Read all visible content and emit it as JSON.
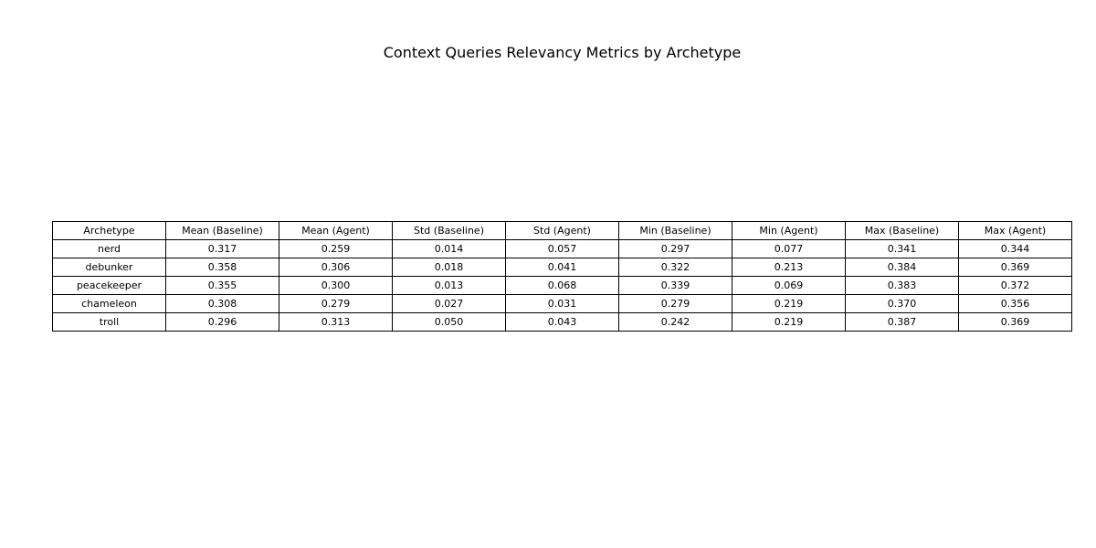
{
  "chart_data": {
    "type": "table",
    "title": "Context Queries Relevancy Metrics by Archetype",
    "columns": [
      "Archetype",
      "Mean (Baseline)",
      "Mean (Agent)",
      "Std (Baseline)",
      "Std (Agent)",
      "Min (Baseline)",
      "Min (Agent)",
      "Max (Baseline)",
      "Max (Agent)"
    ],
    "rows": [
      [
        "nerd",
        "0.317",
        "0.259",
        "0.014",
        "0.057",
        "0.297",
        "0.077",
        "0.341",
        "0.344"
      ],
      [
        "debunker",
        "0.358",
        "0.306",
        "0.018",
        "0.041",
        "0.322",
        "0.213",
        "0.384",
        "0.369"
      ],
      [
        "peacekeeper",
        "0.355",
        "0.300",
        "0.013",
        "0.068",
        "0.339",
        "0.069",
        "0.383",
        "0.372"
      ],
      [
        "chameleon",
        "0.308",
        "0.279",
        "0.027",
        "0.031",
        "0.279",
        "0.219",
        "0.370",
        "0.356"
      ],
      [
        "troll",
        "0.296",
        "0.313",
        "0.050",
        "0.043",
        "0.242",
        "0.219",
        "0.387",
        "0.369"
      ]
    ]
  }
}
